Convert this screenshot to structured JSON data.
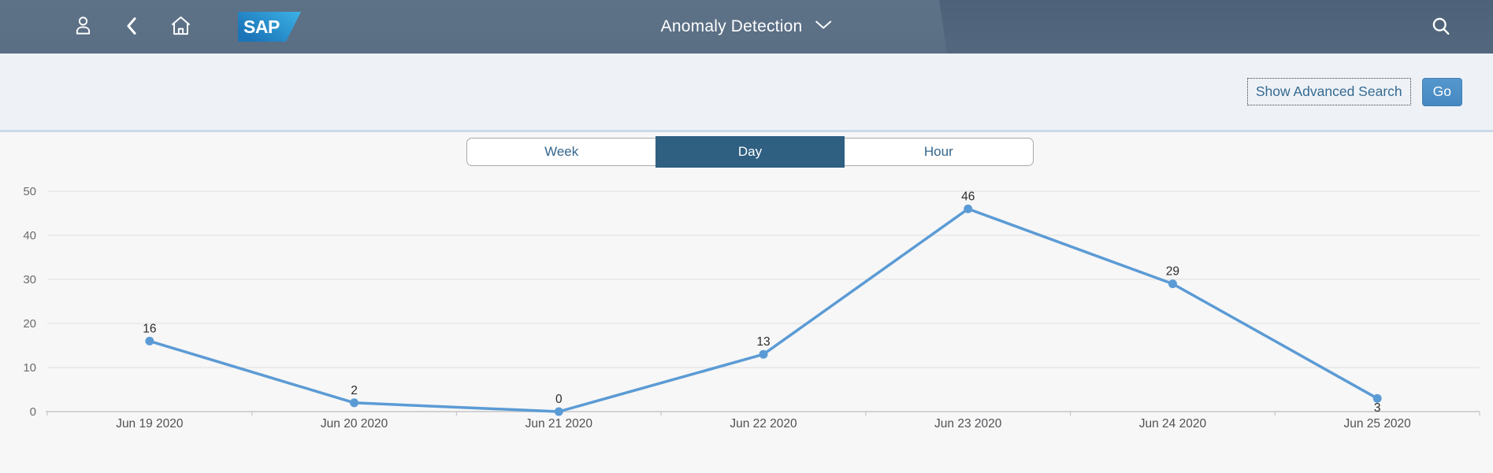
{
  "header": {
    "title": "Anomaly Detection",
    "logo_text": "SAP",
    "icons": {
      "profile": "person-outline",
      "back": "chevron-left",
      "home": "house-outline",
      "title_dropdown": "chevron-down",
      "search": "magnifier"
    }
  },
  "filter_bar": {
    "advanced_search_label": "Show Advanced Search",
    "go_label": "Go"
  },
  "view_switcher": {
    "options": [
      {
        "label": "Week",
        "selected": false
      },
      {
        "label": "Day",
        "selected": true
      },
      {
        "label": "Hour",
        "selected": false
      }
    ]
  },
  "colors": {
    "shell_bg_left": "#5c7186",
    "shell_bg_right": "#4d6279",
    "accent_blue": "#5b9bd5",
    "selected_segment": "#2f5f81",
    "go_button": "#4f92ca",
    "link_text": "#356a91",
    "filter_bar_bg": "#eef2f7"
  },
  "chart_data": {
    "type": "line",
    "title": "",
    "xlabel": "",
    "ylabel": "",
    "categories": [
      "Jun 19 2020",
      "Jun 20 2020",
      "Jun 21 2020",
      "Jun 22 2020",
      "Jun 23 2020",
      "Jun 24 2020",
      "Jun 25 2020"
    ],
    "values": [
      16,
      2,
      0,
      13,
      46,
      29,
      3
    ],
    "point_label_side": [
      "above",
      "above",
      "above",
      "above",
      "above",
      "above",
      "below"
    ],
    "ylim": [
      0,
      50
    ],
    "ytick_step": 10,
    "grid": true,
    "legend": "none",
    "line_color": "#5b9bd5",
    "grid_color": "#e4e4e4",
    "axis_color": "#c6c6c6",
    "point_label_color": "#2b2b2b",
    "x_label_color": "#515156",
    "y_label_color": "#6b6b6b"
  }
}
